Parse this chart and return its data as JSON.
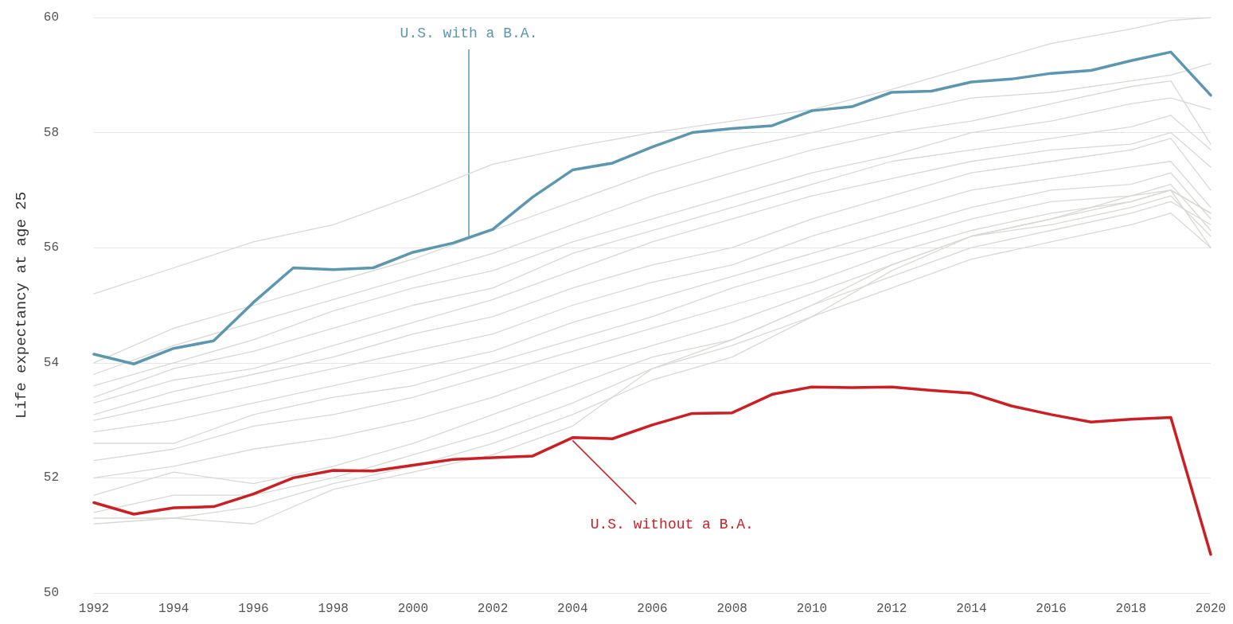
{
  "chart_data": {
    "type": "line",
    "ylabel": "Life expectancy at age 25",
    "xlim": [
      1992,
      2020
    ],
    "xticks": [
      1992,
      1994,
      1996,
      1998,
      2000,
      2002,
      2004,
      2006,
      2008,
      2010,
      2012,
      2014,
      2016,
      2018,
      2020
    ],
    "ylim": [
      50,
      60
    ],
    "yticks": [
      50,
      52,
      54,
      56,
      58,
      60
    ],
    "grid": "y",
    "marker": "none",
    "line_style": "solid",
    "annotations": [
      {
        "text": "U.S. with a B.A.",
        "x": 2001.4,
        "y": 56.2
      },
      {
        "text": "U.S. without a B.A.",
        "x": 2004,
        "y": 52.65
      }
    ],
    "series": [
      {
        "color": "#d8d8d4",
        "x": [
          1992,
          1994,
          1996,
          1998,
          2000,
          2002,
          2004,
          2006,
          2008,
          2010,
          2012,
          2014,
          2016,
          2018,
          2019,
          2020
        ],
        "values": [
          55.2,
          55.65,
          56.1,
          56.4,
          56.9,
          57.45,
          57.75,
          58.0,
          58.2,
          58.4,
          58.75,
          59.15,
          59.55,
          59.8,
          59.95,
          60.0
        ]
      },
      {
        "color": "#d8d8d4",
        "x": [
          1992,
          1994,
          1996,
          1998,
          2000,
          2002,
          2004,
          2006,
          2008,
          2010,
          2012,
          2014,
          2016,
          2018,
          2019,
          2020
        ],
        "values": [
          54.0,
          54.6,
          55.0,
          55.4,
          55.8,
          56.3,
          56.8,
          57.3,
          57.7,
          58.0,
          58.3,
          58.6,
          58.7,
          58.9,
          59.0,
          59.2
        ]
      },
      {
        "color": "#d8d8d4",
        "x": [
          1992,
          1994,
          1996,
          1998,
          2000,
          2002,
          2004,
          2006,
          2008,
          2010,
          2012,
          2014,
          2016,
          2018,
          2019,
          2020
        ],
        "values": [
          53.8,
          54.3,
          54.7,
          55.1,
          55.5,
          55.9,
          56.4,
          56.9,
          57.3,
          57.7,
          58.0,
          58.2,
          58.5,
          58.8,
          58.9,
          57.8
        ]
      },
      {
        "color": "#d8d8d4",
        "x": [
          1992,
          1994,
          1996,
          1998,
          2000,
          2002,
          2004,
          2006,
          2008,
          2010,
          2012,
          2014,
          2016,
          2018,
          2019,
          2020
        ],
        "values": [
          53.6,
          54.0,
          54.4,
          54.9,
          55.3,
          55.6,
          56.1,
          56.5,
          56.9,
          57.3,
          57.6,
          58.0,
          58.2,
          58.5,
          58.6,
          58.4
        ]
      },
      {
        "color": "#d8d8d4",
        "x": [
          1992,
          1994,
          1996,
          1998,
          2000,
          2002,
          2004,
          2006,
          2008,
          2010,
          2012,
          2014,
          2016,
          2018,
          2019,
          2020
        ],
        "values": [
          53.4,
          53.9,
          54.2,
          54.6,
          55.0,
          55.3,
          55.9,
          56.3,
          56.7,
          57.1,
          57.5,
          57.7,
          57.9,
          58.1,
          58.3,
          57.7
        ]
      },
      {
        "color": "#d8d8d4",
        "x": [
          1992,
          1994,
          1996,
          1998,
          2000,
          2002,
          2004,
          2006,
          2008,
          2010,
          2012,
          2014,
          2016,
          2018,
          2019,
          2020
        ],
        "values": [
          53.3,
          53.7,
          53.9,
          54.3,
          54.7,
          55.1,
          55.6,
          56.1,
          56.5,
          56.9,
          57.2,
          57.5,
          57.7,
          57.8,
          58.0,
          57.4
        ]
      },
      {
        "color": "#d8d8d4",
        "x": [
          1992,
          1994,
          1996,
          1998,
          2000,
          2002,
          2004,
          2006,
          2008,
          2010,
          2012,
          2014,
          2016,
          2018,
          2019,
          2020
        ],
        "values": [
          53.1,
          53.5,
          53.8,
          54.1,
          54.5,
          54.8,
          55.3,
          55.7,
          56.0,
          56.5,
          56.9,
          57.3,
          57.5,
          57.7,
          57.9,
          57.0
        ]
      },
      {
        "color": "#d8d8d4",
        "x": [
          1992,
          1994,
          1996,
          1998,
          2000,
          2002,
          2004,
          2006,
          2008,
          2010,
          2012,
          2014,
          2016,
          2018,
          2019,
          2020
        ],
        "values": [
          53.0,
          53.3,
          53.6,
          53.9,
          54.2,
          54.5,
          55.0,
          55.4,
          55.7,
          56.2,
          56.6,
          57.0,
          57.2,
          57.4,
          57.5,
          56.7
        ]
      },
      {
        "color": "#d8d8d4",
        "x": [
          1992,
          1994,
          1996,
          1998,
          2000,
          2002,
          2004,
          2006,
          2008,
          2010,
          2012,
          2014,
          2016,
          2018,
          2019,
          2020
        ],
        "values": [
          52.8,
          53.0,
          53.3,
          53.6,
          53.9,
          54.2,
          54.7,
          55.1,
          55.5,
          55.9,
          56.3,
          56.7,
          57.0,
          57.1,
          57.3,
          56.5
        ]
      },
      {
        "color": "#d8d8d4",
        "x": [
          1992,
          1994,
          1996,
          1998,
          2000,
          2002,
          2004,
          2006,
          2008,
          2010,
          2012,
          2014,
          2016,
          2018,
          2019,
          2020
        ],
        "values": [
          52.6,
          52.6,
          53.1,
          53.4,
          53.6,
          54.0,
          54.4,
          54.8,
          55.3,
          55.7,
          56.1,
          56.5,
          56.8,
          56.9,
          57.1,
          56.3
        ]
      },
      {
        "color": "#d8d8d4",
        "x": [
          1992,
          1994,
          1996,
          1998,
          2000,
          2002,
          2004,
          2006,
          2008,
          2010,
          2012,
          2014,
          2016,
          2018,
          2019,
          2020
        ],
        "values": [
          52.3,
          52.5,
          52.9,
          53.1,
          53.4,
          53.8,
          54.2,
          54.6,
          55.0,
          55.4,
          55.9,
          56.3,
          56.6,
          56.8,
          57.0,
          56.6
        ]
      },
      {
        "color": "#d8d8d4",
        "x": [
          1992,
          1994,
          1996,
          1998,
          2000,
          2002,
          2004,
          2006,
          2008,
          2010,
          2012,
          2014,
          2016,
          2018,
          2019,
          2020
        ],
        "values": [
          52.0,
          52.2,
          52.5,
          52.7,
          53.0,
          53.4,
          53.9,
          54.3,
          54.7,
          55.2,
          55.7,
          56.2,
          56.4,
          56.7,
          56.9,
          56.2
        ]
      },
      {
        "color": "#d8d8d4",
        "x": [
          1992,
          1994,
          1996,
          1998,
          2000,
          2002,
          2004,
          2006,
          2008,
          2010,
          2012,
          2014,
          2016,
          2018,
          2019,
          2020
        ],
        "values": [
          51.7,
          52.1,
          51.9,
          52.2,
          52.6,
          53.1,
          53.6,
          54.1,
          54.4,
          55.0,
          55.5,
          56.0,
          56.3,
          56.6,
          56.8,
          56.4
        ]
      },
      {
        "color": "#d8d8d4",
        "x": [
          1992,
          1994,
          1996,
          1998,
          2000,
          2002,
          2004,
          2006,
          2008,
          2010,
          2012,
          2014,
          2016,
          2018,
          2019,
          2020
        ],
        "values": [
          51.4,
          51.7,
          51.7,
          52.0,
          52.4,
          52.8,
          53.3,
          53.9,
          54.3,
          54.8,
          55.3,
          55.8,
          56.1,
          56.4,
          56.6,
          56.0
        ]
      },
      {
        "color": "#d8d8d4",
        "x": [
          1992,
          1994,
          1996,
          1998,
          2000,
          2002,
          2004,
          2006,
          2008,
          2010,
          2012,
          2014,
          2016,
          2018,
          2019,
          2020
        ],
        "values": [
          51.3,
          51.3,
          51.5,
          51.9,
          52.2,
          52.6,
          53.1,
          53.7,
          54.1,
          54.8,
          55.6,
          56.2,
          56.5,
          56.8,
          57.0,
          56.6
        ]
      },
      {
        "color": "#d8d8d4",
        "x": [
          1992,
          1994,
          1996,
          1998,
          2000,
          2002,
          2004,
          2006,
          2008,
          2010,
          2012,
          2014,
          2016,
          2018,
          2019,
          2020
        ],
        "values": [
          51.2,
          51.3,
          51.2,
          51.8,
          52.1,
          52.4,
          52.9,
          53.9,
          54.4,
          55.0,
          55.7,
          56.2,
          56.5,
          56.9,
          57.0,
          56.0
        ]
      },
      {
        "color": "#5b97b0",
        "x": [
          1992,
          1993,
          1994,
          1995,
          1996,
          1997,
          1998,
          1999,
          2000,
          2001,
          2002,
          2003,
          2004,
          2005,
          2006,
          2007,
          2008,
          2009,
          2010,
          2011,
          2012,
          2013,
          2014,
          2015,
          2016,
          2017,
          2018,
          2019,
          2020
        ],
        "values": [
          54.15,
          53.98,
          54.25,
          54.38,
          55.05,
          55.65,
          55.62,
          55.65,
          55.92,
          56.08,
          56.32,
          56.88,
          57.35,
          57.47,
          57.75,
          58.0,
          58.07,
          58.12,
          58.38,
          58.45,
          58.7,
          58.72,
          58.88,
          58.93,
          59.03,
          59.08,
          59.25,
          59.4,
          58.65
        ]
      },
      {
        "color": "#cc1f24",
        "x": [
          1992,
          1993,
          1994,
          1995,
          1996,
          1997,
          1998,
          1999,
          2000,
          2001,
          2002,
          2003,
          2004,
          2005,
          2006,
          2007,
          2008,
          2009,
          2010,
          2011,
          2012,
          2013,
          2014,
          2015,
          2016,
          2017,
          2018,
          2019,
          2020
        ],
        "values": [
          51.57,
          51.37,
          51.48,
          51.5,
          51.72,
          52.0,
          52.13,
          52.12,
          52.22,
          52.32,
          52.35,
          52.38,
          52.7,
          52.68,
          52.92,
          53.12,
          53.13,
          53.45,
          53.58,
          53.57,
          53.58,
          53.52,
          53.47,
          53.25,
          53.1,
          52.97,
          53.02,
          53.05,
          50.67
        ]
      }
    ]
  }
}
